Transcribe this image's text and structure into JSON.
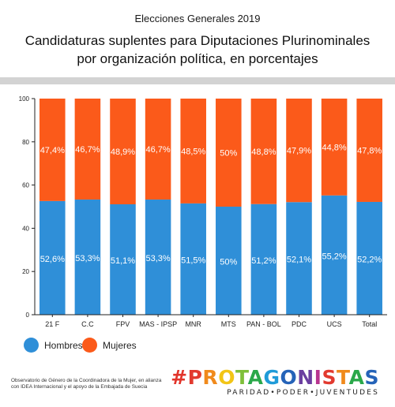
{
  "header": {
    "kicker": "Elecciones Generales 2019",
    "title_line1": "Candidaturas suplentes para Diputaciones  Plurinominales",
    "title_line2": "por organización política, en  porcentajes"
  },
  "colors": {
    "hombres": "#2f8fd8",
    "mujeres": "#fb5a1a",
    "rule": "#d3d3d3",
    "brand_hash": "#e2352b"
  },
  "chart_data": {
    "type": "bar",
    "stacked": true,
    "categories": [
      "21 F",
      "C.C",
      "FPV",
      "MAS - IPSP",
      "MNR",
      "MTS",
      "PAN - BOL",
      "PDC",
      "UCS",
      "Total"
    ],
    "series": [
      {
        "name": "Hombres",
        "values": [
          52.6,
          53.3,
          51.1,
          53.3,
          51.5,
          50,
          51.2,
          52.1,
          55.2,
          52.2
        ],
        "labels": [
          "52,6%",
          "53,3%",
          "51,1%",
          "53,3%",
          "51,5%",
          "50%",
          "51,2%",
          "52,1%",
          "55,2%",
          "52,2%"
        ]
      },
      {
        "name": "Mujeres",
        "values": [
          47.4,
          46.7,
          48.9,
          46.7,
          48.5,
          50,
          48.8,
          47.9,
          44.8,
          47.8
        ],
        "labels": [
          "47,4%",
          "46,7%",
          "48,9%",
          "46,7%",
          "48,5%",
          "50%",
          "48,8%",
          "47,9%",
          "44,8%",
          "47,8%"
        ]
      }
    ],
    "ylim": [
      0,
      100
    ],
    "yticks": [
      "0",
      "20",
      "40",
      "60",
      "80",
      "100"
    ],
    "legend_position": "bottom-left",
    "grid": false
  },
  "legend": [
    {
      "label": "Hombres"
    },
    {
      "label": "Mujeres"
    }
  ],
  "footer": {
    "note_line1": "Observatorio de Género de la Coordinadora de la Mujer, en alianza",
    "note_line2": "con IDEA Internacional y el apoyo de la Embajada de Suecia",
    "brand_hash": "#",
    "brand_word": "PROTAGONISTAS",
    "brand_sub": "PARIDAD•PODER•JUVENTUDES"
  }
}
